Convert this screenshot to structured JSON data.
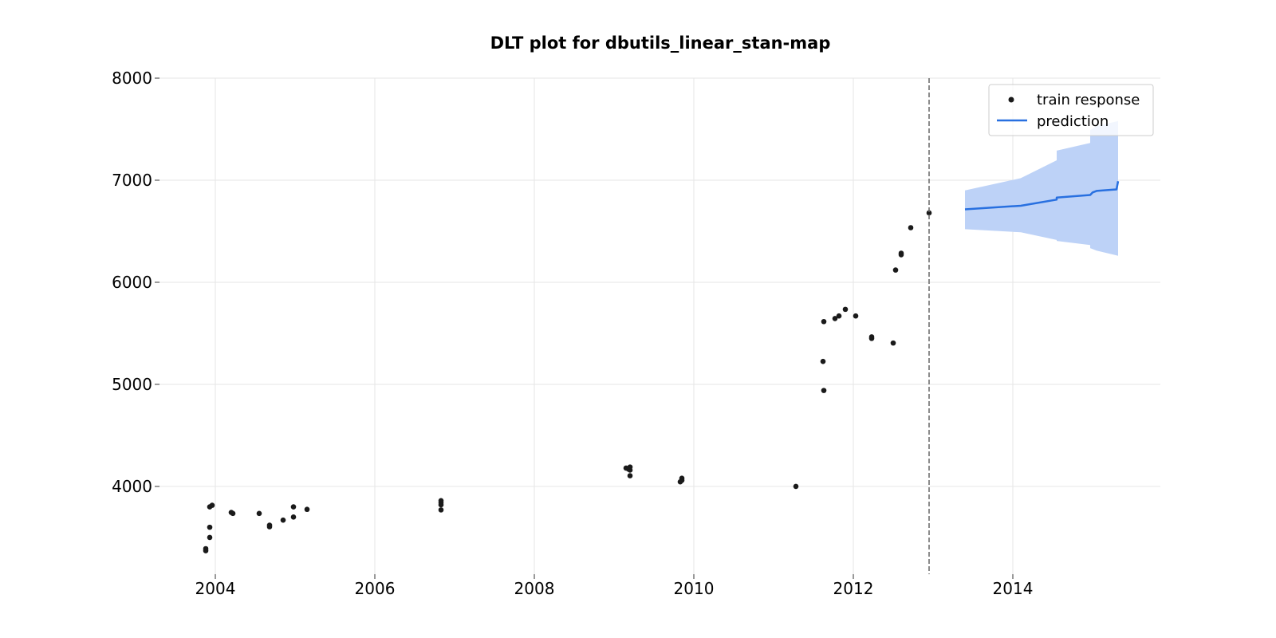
{
  "chart_data": {
    "type": "line",
    "title": "DLT plot for dbutils_linear_stan-map",
    "xlabel": "",
    "ylabel": "",
    "xlim": [
      2003.3,
      2015.85
    ],
    "ylim": [
      3140,
      8000
    ],
    "x_ticks": [
      2004,
      2006,
      2008,
      2010,
      2012,
      2014
    ],
    "y_ticks": [
      4000,
      5000,
      6000,
      7000,
      8000
    ],
    "grid": true,
    "legend_position": "top-right",
    "forecast_start": 2012.95,
    "series": [
      {
        "name": "train response",
        "kind": "scatter",
        "color": "#1a1a1a",
        "points": [
          [
            2003.88,
            3370
          ],
          [
            2003.88,
            3390
          ],
          [
            2003.93,
            3500
          ],
          [
            2003.93,
            3600
          ],
          [
            2003.93,
            3800
          ],
          [
            2003.96,
            3815
          ],
          [
            2004.2,
            3745
          ],
          [
            2004.22,
            3735
          ],
          [
            2004.55,
            3735
          ],
          [
            2004.68,
            3620
          ],
          [
            2004.68,
            3605
          ],
          [
            2004.85,
            3670
          ],
          [
            2004.98,
            3700
          ],
          [
            2004.98,
            3800
          ],
          [
            2005.15,
            3775
          ],
          [
            2006.83,
            3770
          ],
          [
            2006.83,
            3820
          ],
          [
            2006.83,
            3840
          ],
          [
            2006.83,
            3860
          ],
          [
            2009.15,
            4180
          ],
          [
            2009.18,
            4170
          ],
          [
            2009.2,
            4190
          ],
          [
            2009.2,
            4160
          ],
          [
            2009.2,
            4105
          ],
          [
            2009.83,
            4045
          ],
          [
            2009.85,
            4060
          ],
          [
            2009.85,
            4080
          ],
          [
            2011.28,
            4000
          ],
          [
            2011.62,
            5225
          ],
          [
            2011.63,
            4940
          ],
          [
            2011.63,
            5615
          ],
          [
            2011.77,
            5645
          ],
          [
            2011.82,
            5670
          ],
          [
            2011.9,
            5735
          ],
          [
            2012.03,
            5670
          ],
          [
            2012.23,
            5450
          ],
          [
            2012.23,
            5465
          ],
          [
            2012.5,
            5405
          ],
          [
            2012.53,
            6120
          ],
          [
            2012.6,
            6270
          ],
          [
            2012.6,
            6285
          ],
          [
            2012.72,
            6535
          ],
          [
            2012.95,
            6680
          ]
        ]
      },
      {
        "name": "prediction",
        "kind": "line",
        "color": "#2870e0",
        "band_color": "#bdd2f7",
        "points": [
          [
            2013.4,
            6715
          ],
          [
            2014.1,
            6750
          ],
          [
            2014.55,
            6810
          ],
          [
            2014.55,
            6830
          ],
          [
            2014.97,
            6855
          ],
          [
            2015.0,
            6880
          ],
          [
            2015.05,
            6895
          ],
          [
            2015.3,
            6910
          ],
          [
            2015.32,
            6990
          ]
        ],
        "band_upper": [
          [
            2013.4,
            6900
          ],
          [
            2014.1,
            7020
          ],
          [
            2014.55,
            7195
          ],
          [
            2014.55,
            7290
          ],
          [
            2014.97,
            7365
          ],
          [
            2014.97,
            7490
          ],
          [
            2015.05,
            7530
          ],
          [
            2015.32,
            7580
          ]
        ],
        "band_lower": [
          [
            2013.4,
            6520
          ],
          [
            2014.1,
            6490
          ],
          [
            2014.55,
            6415
          ],
          [
            2014.55,
            6405
          ],
          [
            2014.97,
            6365
          ],
          [
            2014.97,
            6335
          ],
          [
            2015.05,
            6310
          ],
          [
            2015.32,
            6260
          ]
        ]
      }
    ]
  }
}
